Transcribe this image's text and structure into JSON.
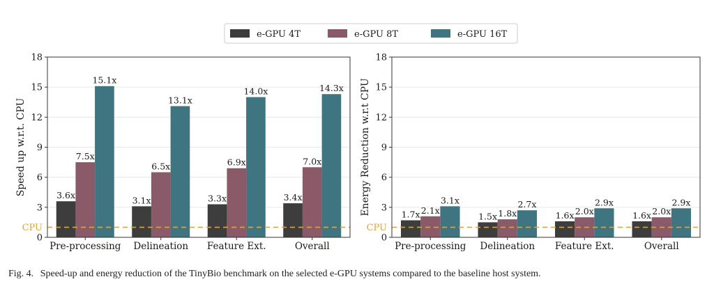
{
  "legend": {
    "items": [
      {
        "label": "e-GPU 4T",
        "color": "#3d3d3d"
      },
      {
        "label": "e-GPU 8T",
        "color": "#8b5a68"
      },
      {
        "label": "e-GPU 16T",
        "color": "#3f7580"
      }
    ],
    "placement": "top-center"
  },
  "caption": {
    "number": "Fig. 4.",
    "text": "Speed-up and energy reduction of the TinyBio benchmark on the selected e-GPU systems compared to the baseline host system."
  },
  "chart_data": [
    {
      "type": "bar",
      "ylabel": "Speed up w.r.t. CPU",
      "ylim": [
        0,
        18
      ],
      "yticks": [
        "0",
        "3",
        "6",
        "9",
        "12",
        "15",
        "18"
      ],
      "grid": "horizontal",
      "categories": [
        "Pre-processing",
        "Delineation",
        "Feature Ext.",
        "Overall"
      ],
      "series": [
        {
          "name": "e-GPU 4T",
          "color": "#3d3d3d",
          "values": [
            3.6,
            3.1,
            3.3,
            3.4
          ],
          "labels": [
            "3.6x",
            "3.1x",
            "3.3x",
            "3.4x"
          ]
        },
        {
          "name": "e-GPU 8T",
          "color": "#8b5a68",
          "values": [
            7.5,
            6.5,
            6.9,
            7.0
          ],
          "labels": [
            "7.5x",
            "6.5x",
            "6.9x",
            "7.0x"
          ]
        },
        {
          "name": "e-GPU 16T",
          "color": "#3f7580",
          "values": [
            15.1,
            13.1,
            14.0,
            14.3
          ],
          "labels": [
            "15.1x",
            "13.1x",
            "14.0x",
            "14.3x"
          ]
        }
      ],
      "baseline": {
        "label": "CPU",
        "value": 1,
        "color": "#d9a641"
      }
    },
    {
      "type": "bar",
      "ylabel": "Energy Reduction w.r.t CPU",
      "ylim": [
        0,
        18
      ],
      "yticks": [
        "0",
        "3",
        "6",
        "9",
        "12",
        "15",
        "18"
      ],
      "grid": "horizontal",
      "categories": [
        "Pre-processing",
        "Delineation",
        "Feature Ext.",
        "Overall"
      ],
      "series": [
        {
          "name": "e-GPU 4T",
          "color": "#3d3d3d",
          "values": [
            1.7,
            1.5,
            1.6,
            1.6
          ],
          "labels": [
            "1.7x",
            "1.5x",
            "1.6x",
            "1.6x"
          ]
        },
        {
          "name": "e-GPU 8T",
          "color": "#8b5a68",
          "values": [
            2.1,
            1.8,
            2.0,
            2.0
          ],
          "labels": [
            "2.1x",
            "1.8x",
            "2.0x",
            "2.0x"
          ]
        },
        {
          "name": "e-GPU 16T",
          "color": "#3f7580",
          "values": [
            3.1,
            2.7,
            2.9,
            2.9
          ],
          "labels": [
            "3.1x",
            "2.7x",
            "2.9x",
            "2.9x"
          ]
        }
      ],
      "baseline": {
        "label": "CPU",
        "value": 1,
        "color": "#d9a641"
      }
    }
  ]
}
